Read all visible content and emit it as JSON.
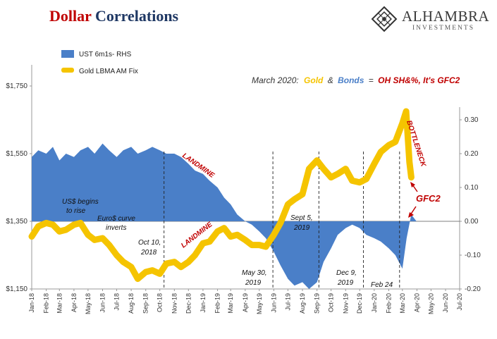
{
  "title_part1": "Dollar",
  "title_part2": "Correlations",
  "brand": {
    "name": "ALHAMBRA",
    "sub": "INVESTMENTS"
  },
  "headline": {
    "prefix": "March 2020:",
    "gold": "Gold",
    "amp": "&",
    "bonds": "Bonds",
    "eq": "=",
    "tail": "OH SH&%, It's GFC2"
  },
  "colors": {
    "gold": "#f5c400",
    "bonds": "#4a7fc8",
    "red": "#c00000",
    "navy": "#1f3864"
  },
  "annotations": {
    "landmine_top": "LANDMINE",
    "landmine_bottom": "LANDMINE",
    "bottleneck": "BOTTLENECK",
    "gfc2": "GFC2",
    "us_begins": [
      "US$ begins",
      "to rise"
    ],
    "euro_curve": [
      "Euro$ curve",
      "inverts"
    ],
    "oct10": [
      "Oct 10,",
      "2018"
    ],
    "may30": [
      "May 30,",
      "2019"
    ],
    "sept5": [
      "Sept 5,",
      "2019"
    ],
    "dec9": [
      "Dec 9,",
      "2019"
    ],
    "feb24": [
      "Feb 24"
    ]
  },
  "chart_data": {
    "type": "line+area",
    "legend_placement": "top-left",
    "left_axis": {
      "ylim": [
        1150,
        1750
      ],
      "ticks": [
        "$1,150",
        "$1,350",
        "$1,550",
        "$1,750"
      ],
      "tick_values": [
        1150,
        1350,
        1550,
        1750
      ]
    },
    "right_axis": {
      "ylim": [
        -0.2,
        0.4
      ],
      "ticks": [
        "-0.20",
        "-0.10",
        "0.00",
        "0.10",
        "0.20",
        "0.30"
      ],
      "tick_values": [
        -0.2,
        -0.1,
        0,
        0.1,
        0.2,
        0.3
      ]
    },
    "x_ticks": [
      "Jan-18",
      "Feb-18",
      "Mar-18",
      "Apr-18",
      "May-18",
      "Jun-18",
      "Jul-18",
      "Aug-18",
      "Sep-18",
      "Oct-18",
      "Nov-18",
      "Dec-18",
      "Jan-19",
      "Feb-19",
      "Mar-19",
      "Apr-19",
      "May-19",
      "Jun-19",
      "Jul-19",
      "Aug-19",
      "Sep-19",
      "Oct-19",
      "Nov-19",
      "Dec-19",
      "Jan-20",
      "Feb-20",
      "Mar-20",
      "Apr-20",
      "May-20",
      "Jun-20",
      "Jul-20"
    ],
    "event_lines": [
      "2018-10-10",
      "2019-05-30",
      "2019-09-05",
      "2019-12-09",
      "2020-02-24"
    ],
    "series": [
      {
        "name": "UST 6m1s- RHS",
        "axis": "right",
        "style": "area",
        "points": [
          [
            "2018-01-01",
            0.19
          ],
          [
            "2018-01-15",
            0.21
          ],
          [
            "2018-02-01",
            0.2
          ],
          [
            "2018-02-15",
            0.22
          ],
          [
            "2018-03-01",
            0.18
          ],
          [
            "2018-03-15",
            0.2
          ],
          [
            "2018-04-01",
            0.19
          ],
          [
            "2018-04-15",
            0.21
          ],
          [
            "2018-05-01",
            0.22
          ],
          [
            "2018-05-15",
            0.2
          ],
          [
            "2018-06-01",
            0.23
          ],
          [
            "2018-06-15",
            0.21
          ],
          [
            "2018-07-01",
            0.19
          ],
          [
            "2018-07-15",
            0.21
          ],
          [
            "2018-08-01",
            0.22
          ],
          [
            "2018-08-15",
            0.2
          ],
          [
            "2018-09-01",
            0.21
          ],
          [
            "2018-09-15",
            0.22
          ],
          [
            "2018-10-01",
            0.21
          ],
          [
            "2018-10-15",
            0.2
          ],
          [
            "2018-11-01",
            0.2
          ],
          [
            "2018-11-15",
            0.19
          ],
          [
            "2018-12-01",
            0.17
          ],
          [
            "2018-12-15",
            0.15
          ],
          [
            "2019-01-01",
            0.14
          ],
          [
            "2019-01-15",
            0.12
          ],
          [
            "2019-02-01",
            0.1
          ],
          [
            "2019-02-15",
            0.07
          ],
          [
            "2019-03-01",
            0.05
          ],
          [
            "2019-03-15",
            0.02
          ],
          [
            "2019-04-01",
            0.0
          ],
          [
            "2019-04-15",
            -0.01
          ],
          [
            "2019-05-01",
            -0.03
          ],
          [
            "2019-05-15",
            -0.05
          ],
          [
            "2019-06-01",
            -0.09
          ],
          [
            "2019-06-15",
            -0.13
          ],
          [
            "2019-07-01",
            -0.17
          ],
          [
            "2019-07-15",
            -0.19
          ],
          [
            "2019-08-01",
            -0.18
          ],
          [
            "2019-08-15",
            -0.2
          ],
          [
            "2019-09-01",
            -0.18
          ],
          [
            "2019-09-15",
            -0.12
          ],
          [
            "2019-10-01",
            -0.08
          ],
          [
            "2019-10-15",
            -0.04
          ],
          [
            "2019-11-01",
            -0.02
          ],
          [
            "2019-11-15",
            -0.01
          ],
          [
            "2019-12-01",
            -0.02
          ],
          [
            "2019-12-15",
            -0.04
          ],
          [
            "2020-01-01",
            -0.05
          ],
          [
            "2020-01-15",
            -0.06
          ],
          [
            "2020-02-01",
            -0.08
          ],
          [
            "2020-02-15",
            -0.1
          ],
          [
            "2020-03-01",
            -0.14
          ],
          [
            "2020-03-10",
            -0.05
          ],
          [
            "2020-03-20",
            0.02
          ],
          [
            "2020-03-31",
            0.0
          ]
        ]
      },
      {
        "name": "Gold LBMA AM Fix",
        "axis": "left",
        "style": "line",
        "points": [
          [
            "2018-01-01",
            1305
          ],
          [
            "2018-01-15",
            1335
          ],
          [
            "2018-02-01",
            1345
          ],
          [
            "2018-02-15",
            1340
          ],
          [
            "2018-03-01",
            1320
          ],
          [
            "2018-03-15",
            1325
          ],
          [
            "2018-04-01",
            1340
          ],
          [
            "2018-04-15",
            1345
          ],
          [
            "2018-05-01",
            1310
          ],
          [
            "2018-05-15",
            1295
          ],
          [
            "2018-06-01",
            1300
          ],
          [
            "2018-06-15",
            1280
          ],
          [
            "2018-07-01",
            1250
          ],
          [
            "2018-07-15",
            1230
          ],
          [
            "2018-08-01",
            1215
          ],
          [
            "2018-08-15",
            1180
          ],
          [
            "2018-09-01",
            1200
          ],
          [
            "2018-09-15",
            1205
          ],
          [
            "2018-10-01",
            1195
          ],
          [
            "2018-10-15",
            1225
          ],
          [
            "2018-11-01",
            1230
          ],
          [
            "2018-11-15",
            1215
          ],
          [
            "2018-12-01",
            1230
          ],
          [
            "2018-12-15",
            1250
          ],
          [
            "2019-01-01",
            1285
          ],
          [
            "2019-01-15",
            1290
          ],
          [
            "2019-02-01",
            1320
          ],
          [
            "2019-02-15",
            1330
          ],
          [
            "2019-03-01",
            1305
          ],
          [
            "2019-03-15",
            1310
          ],
          [
            "2019-04-01",
            1295
          ],
          [
            "2019-04-15",
            1280
          ],
          [
            "2019-05-01",
            1280
          ],
          [
            "2019-05-15",
            1275
          ],
          [
            "2019-06-01",
            1310
          ],
          [
            "2019-06-15",
            1345
          ],
          [
            "2019-07-01",
            1400
          ],
          [
            "2019-07-15",
            1415
          ],
          [
            "2019-08-01",
            1430
          ],
          [
            "2019-08-15",
            1505
          ],
          [
            "2019-09-01",
            1530
          ],
          [
            "2019-09-15",
            1505
          ],
          [
            "2019-10-01",
            1480
          ],
          [
            "2019-10-15",
            1490
          ],
          [
            "2019-11-01",
            1505
          ],
          [
            "2019-11-15",
            1470
          ],
          [
            "2019-12-01",
            1465
          ],
          [
            "2019-12-15",
            1475
          ],
          [
            "2020-01-01",
            1520
          ],
          [
            "2020-01-15",
            1555
          ],
          [
            "2020-02-01",
            1575
          ],
          [
            "2020-02-15",
            1585
          ],
          [
            "2020-03-01",
            1640
          ],
          [
            "2020-03-09",
            1675
          ],
          [
            "2020-03-16",
            1525
          ],
          [
            "2020-03-20",
            1480
          ]
        ]
      }
    ]
  }
}
